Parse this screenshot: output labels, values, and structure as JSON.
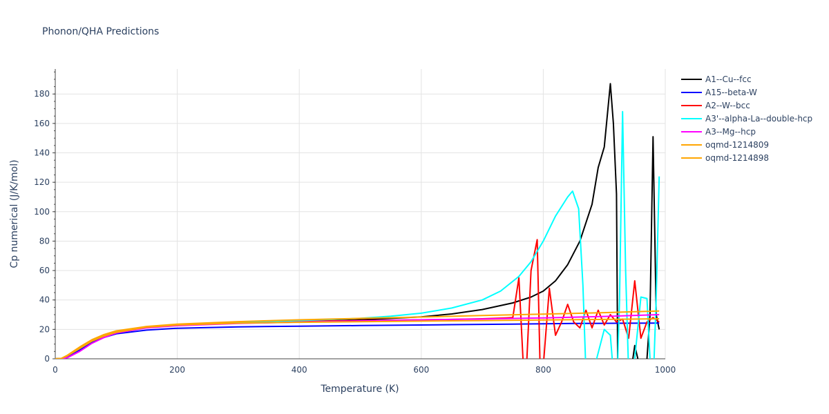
{
  "chart_data": {
    "type": "line",
    "title": "Phonon/QHA Predictions",
    "xlabel": "Temperature (K)",
    "ylabel": "Cp numerical (J/K/mol)",
    "xlim": [
      0,
      1000
    ],
    "ylim": [
      0,
      197
    ],
    "xticks": [
      0,
      200,
      400,
      600,
      800,
      1000
    ],
    "yticks": [
      0,
      20,
      40,
      60,
      80,
      100,
      120,
      140,
      160,
      180
    ],
    "grid": true,
    "legend_position": "right",
    "series": [
      {
        "name": "A1--Cu--fcc",
        "color": "#000000",
        "x": [
          0,
          10,
          20,
          40,
          60,
          80,
          100,
          150,
          200,
          300,
          400,
          500,
          600,
          650,
          700,
          750,
          780,
          800,
          820,
          840,
          860,
          880,
          890,
          900,
          910,
          915,
          920,
          922,
          930,
          940,
          950,
          955,
          960,
          965,
          970,
          975,
          980,
          983,
          985,
          990
        ],
        "y": [
          0,
          0.2,
          2,
          7,
          12,
          15.5,
          18,
          21.5,
          23,
          24.5,
          25.3,
          26.5,
          28.5,
          30.5,
          33.5,
          38,
          42,
          46,
          53,
          64,
          80,
          105,
          130,
          144,
          187,
          160,
          112,
          0,
          -20,
          -20,
          9,
          0,
          -10,
          -10,
          0,
          30,
          151,
          80,
          30,
          20
        ]
      },
      {
        "name": "A15--beta-W",
        "color": "#0000ff",
        "x": [
          0,
          10,
          20,
          40,
          60,
          80,
          100,
          150,
          200,
          300,
          400,
          500,
          600,
          650,
          700,
          750,
          800,
          850,
          900,
          950,
          990
        ],
        "y": [
          0,
          0.2,
          1.5,
          6,
          11,
          14.5,
          17,
          19.5,
          20.8,
          21.7,
          22.2,
          22.6,
          23,
          23.2,
          23.4,
          23.6,
          23.8,
          24,
          24.1,
          24.2,
          24.3
        ]
      },
      {
        "name": "A2--W--bcc",
        "color": "#ff0000",
        "x": [
          0,
          10,
          20,
          40,
          60,
          80,
          100,
          150,
          200,
          300,
          400,
          500,
          600,
          650,
          700,
          720,
          740,
          750,
          760,
          768,
          772,
          780,
          790,
          795,
          800,
          810,
          820,
          830,
          840,
          850,
          860,
          870,
          880,
          890,
          900,
          910,
          920,
          930,
          940,
          950,
          960,
          970,
          980,
          990
        ],
        "y": [
          0,
          0.2,
          2,
          7,
          12,
          15.5,
          18,
          21.5,
          23,
          24.8,
          25.5,
          26,
          26.5,
          26.8,
          27.2,
          27.5,
          27.8,
          28,
          55,
          -10,
          -10,
          60,
          81,
          -10,
          -5,
          48,
          16,
          25,
          37,
          25,
          21,
          33,
          21,
          33,
          23,
          30,
          25,
          27,
          14,
          53,
          14,
          25,
          28,
          25
        ]
      },
      {
        "name": "A3'--alpha-La--double-hcp",
        "color": "#00ffff",
        "x": [
          0,
          10,
          20,
          40,
          60,
          80,
          100,
          150,
          200,
          300,
          400,
          500,
          550,
          600,
          650,
          700,
          730,
          760,
          780,
          800,
          820,
          840,
          848,
          858,
          865,
          870,
          875,
          900,
          905,
          910,
          915,
          920,
          925,
          930,
          935,
          940,
          945,
          950,
          960,
          970,
          975,
          980,
          985,
          990
        ],
        "y": [
          0,
          0.2,
          2,
          7,
          12,
          15.5,
          18,
          21.5,
          23,
          24.8,
          26,
          27.5,
          29,
          31,
          34.5,
          40,
          46,
          56,
          66,
          80,
          97,
          110,
          114,
          102,
          50,
          -10,
          -20,
          20,
          18,
          16,
          -10,
          -30,
          40,
          168,
          60,
          -10,
          -30,
          0,
          42,
          41,
          0,
          -20,
          40,
          124
        ]
      },
      {
        "name": "A3--Mg--hcp",
        "color": "#ff00ff",
        "x": [
          0,
          10,
          20,
          40,
          60,
          80,
          100,
          150,
          200,
          300,
          400,
          500,
          600,
          700,
          800,
          900,
          990
        ],
        "y": [
          0,
          0,
          0.8,
          5,
          10.5,
          14.5,
          17.5,
          21,
          22.5,
          24,
          25,
          25.8,
          26.5,
          27,
          27.8,
          28.8,
          30
        ]
      },
      {
        "name": "oqmd-1214809",
        "color": "#ffa500",
        "x": [
          0,
          10,
          20,
          40,
          60,
          80,
          100,
          150,
          200,
          300,
          400,
          500,
          600,
          700,
          800,
          900,
          990
        ],
        "y": [
          0,
          0.2,
          2,
          7,
          12,
          15.5,
          18,
          21.5,
          23,
          24.3,
          24.8,
          25.2,
          25.6,
          26,
          26.4,
          26.8,
          27.2
        ]
      },
      {
        "name": "oqmd-1214898",
        "color": "#ffa500",
        "x": [
          0,
          10,
          20,
          40,
          60,
          80,
          100,
          150,
          200,
          300,
          400,
          500,
          600,
          700,
          800,
          900,
          990
        ],
        "y": [
          0,
          0.3,
          2.5,
          8,
          13,
          16.5,
          19,
          22,
          23.6,
          25.3,
          26.5,
          27.5,
          28.4,
          29.4,
          30.4,
          31.4,
          32.5
        ]
      }
    ]
  }
}
